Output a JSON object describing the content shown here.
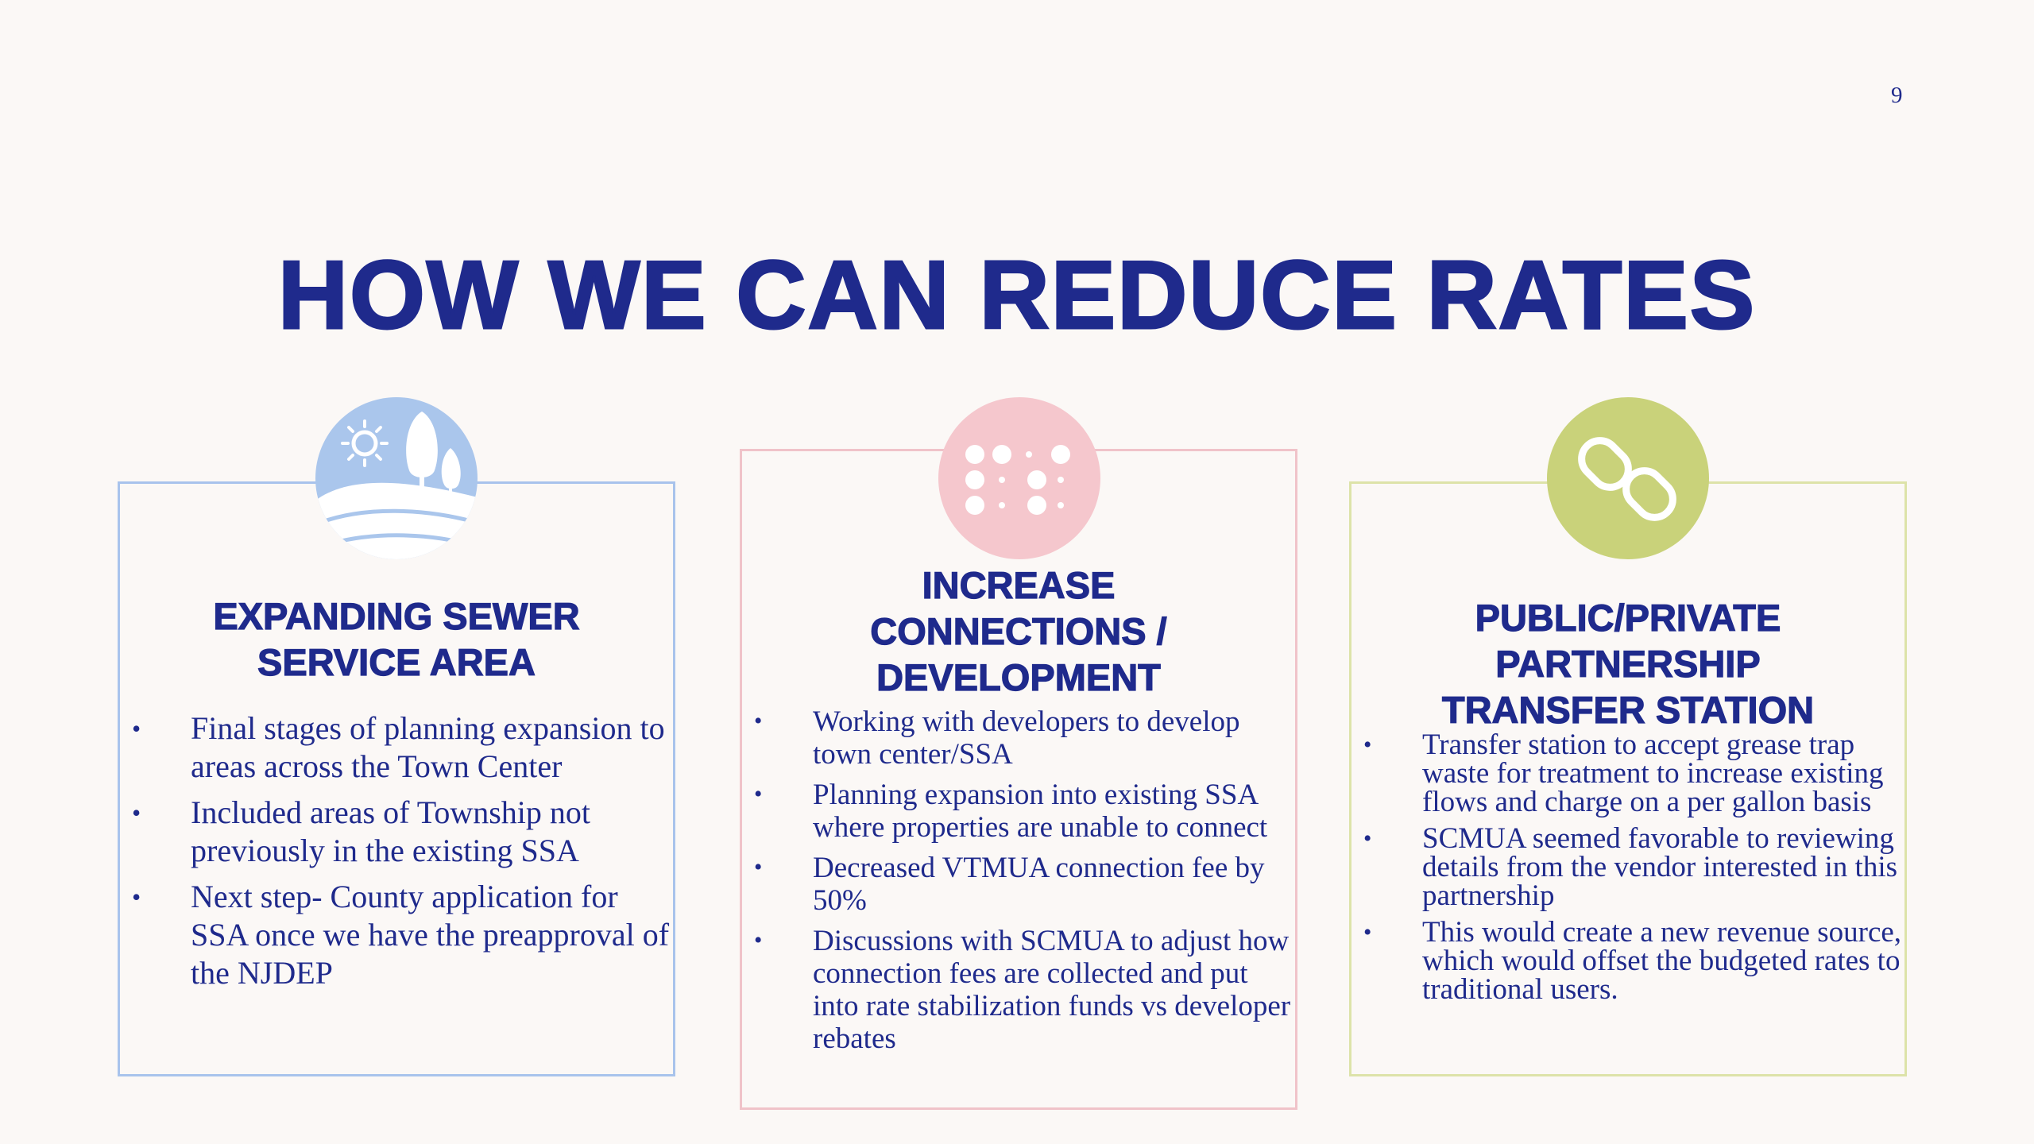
{
  "slide": {
    "page_number": "9",
    "title": "HOW WE CAN REDUCE RATES"
  },
  "cards": [
    {
      "icon": "landscape-sun-trees-icon",
      "accent": "#aac6ec",
      "heading_lines": [
        "EXPANDING SEWER",
        "SERVICE AREA"
      ],
      "bullets": [
        "Final stages of planning expansion to areas across the Town Center",
        "Included areas of Township not previously in the existing SSA",
        "Next step- County application for SSA once we have the preapproval of the NJDEP"
      ]
    },
    {
      "icon": "dots-grid-icon",
      "accent": "#f5c7cd",
      "heading_lines": [
        "INCREASE",
        "CONNECTIONS /",
        "DEVELOPMENT"
      ],
      "bullets": [
        "Working with developers to develop town center/SSA",
        "Planning expansion into existing SSA where properties are unable to connect",
        "Decreased VTMUA connection fee by 50%",
        "Discussions with SCMUA to adjust how connection fees are collected and put into rate stabilization funds vs developer rebates"
      ]
    },
    {
      "icon": "chain-link-icon",
      "accent": "#c9d27a",
      "heading_lines": [
        "PUBLIC/PRIVATE",
        "PARTNERSHIP",
        "TRANSFER STATION"
      ],
      "bullets": [
        "Transfer station to accept grease trap waste for treatment to increase existing flows and charge on a per gallon basis",
        "SCMUA seemed favorable to reviewing details from the vendor interested in this partnership",
        "This would create a new revenue source, which would offset the budgeted rates to traditional users."
      ]
    }
  ]
}
